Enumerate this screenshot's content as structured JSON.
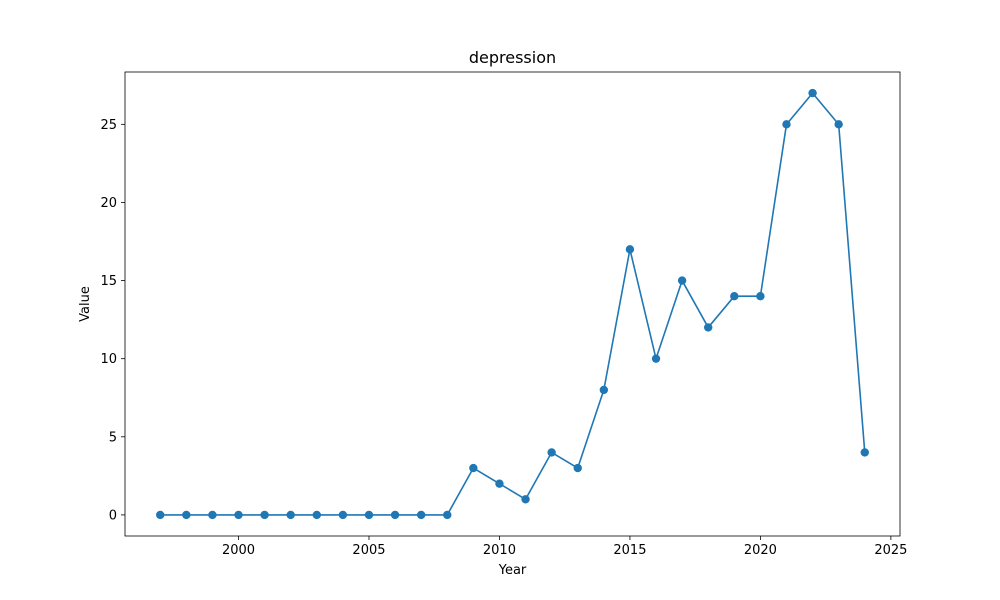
{
  "chart_data": {
    "type": "line",
    "title": "depression",
    "xlabel": "Year",
    "ylabel": "Value",
    "xlim": [
      1995.65,
      2025.35
    ],
    "ylim": [
      -1.35,
      28.35
    ],
    "xticks": [
      2000,
      2005,
      2010,
      2015,
      2020,
      2025
    ],
    "yticks": [
      0,
      5,
      10,
      15,
      20,
      25
    ],
    "grid": false,
    "legend": "none",
    "color": "#1f77b4",
    "marker": "circle",
    "series": [
      {
        "x": [
          1997,
          1998,
          1999,
          2000,
          2001,
          2002,
          2003,
          2004,
          2005,
          2006,
          2007,
          2008,
          2009,
          2010,
          2011,
          2012,
          2013,
          2014,
          2015,
          2016,
          2017,
          2018,
          2019,
          2020,
          2021,
          2022,
          2023,
          2024
        ],
        "values": [
          0,
          0,
          0,
          0,
          0,
          0,
          0,
          0,
          0,
          0,
          0,
          0,
          3,
          2,
          1,
          4,
          3,
          8,
          17,
          10,
          15,
          12,
          14,
          14,
          25,
          27,
          25,
          4
        ]
      }
    ]
  }
}
